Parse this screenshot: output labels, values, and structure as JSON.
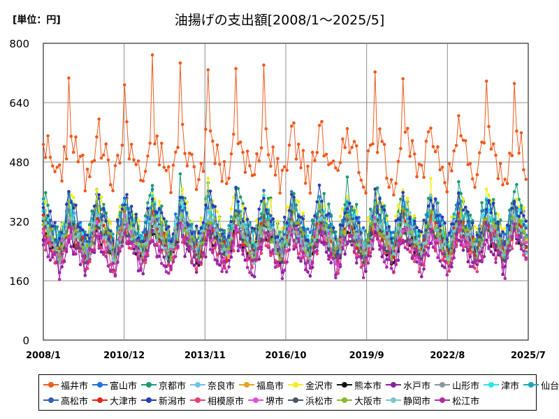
{
  "chart_data": {
    "type": "line",
    "title": "油揚げの支出額[2008/1～2025/5]",
    "unit_label": "[単位：円]",
    "xlabel": "",
    "ylabel": "",
    "ylim": [
      0,
      800
    ],
    "y_ticks": [
      "0",
      "160",
      "320",
      "480",
      "640",
      "800"
    ],
    "x_tick_labels": [
      "2008/1",
      "2010/12",
      "2013/11",
      "2016/10",
      "2019/9",
      "2022/8",
      "2025/7"
    ],
    "x_range": [
      "2008/1",
      "2025/7"
    ],
    "grid": true,
    "legend_position": "bottom",
    "series": [
      {
        "name": "福井市",
        "color": "#ee5a1e",
        "level": 505,
        "amp": 85
      },
      {
        "name": "富山市",
        "color": "#1f6fe5",
        "level": 320,
        "amp": 60
      },
      {
        "name": "京都市",
        "color": "#1a9c6e",
        "level": 330,
        "amp": 85
      },
      {
        "name": "奈良市",
        "color": "#6ec2ee",
        "level": 300,
        "amp": 70
      },
      {
        "name": "福島市",
        "color": "#e8a21c",
        "level": 280,
        "amp": 55
      },
      {
        "name": "金沢市",
        "color": "#f2ee18",
        "level": 330,
        "amp": 75
      },
      {
        "name": "熊本市",
        "color": "#111111",
        "level": 265,
        "amp": 45
      },
      {
        "name": "水戸市",
        "color": "#8a1f9c",
        "level": 240,
        "amp": 50
      },
      {
        "name": "山形市",
        "color": "#8c96a2",
        "level": 285,
        "amp": 55
      },
      {
        "name": "津市",
        "color": "#22e8ea",
        "level": 300,
        "amp": 65
      },
      {
        "name": "仙台市",
        "color": "#1aa6b8",
        "level": 310,
        "amp": 65
      },
      {
        "name": "高松市",
        "color": "#3460b0",
        "level": 300,
        "amp": 55
      },
      {
        "name": "大津市",
        "color": "#e2261a",
        "level": 280,
        "amp": 55
      },
      {
        "name": "新潟市",
        "color": "#2a3cb4",
        "level": 325,
        "amp": 70
      },
      {
        "name": "相模原市",
        "color": "#e6406e",
        "level": 250,
        "amp": 50
      },
      {
        "name": "堺市",
        "color": "#e050d8",
        "level": 270,
        "amp": 50
      },
      {
        "name": "浜松市",
        "color": "#4a5560",
        "level": 275,
        "amp": 50
      },
      {
        "name": "大阪市",
        "color": "#86b830",
        "level": 290,
        "amp": 60
      },
      {
        "name": "静岡市",
        "color": "#7ac6c4",
        "level": 280,
        "amp": 55
      },
      {
        "name": "松江市",
        "color": "#b02aa6",
        "level": 240,
        "amp": 55
      }
    ]
  }
}
